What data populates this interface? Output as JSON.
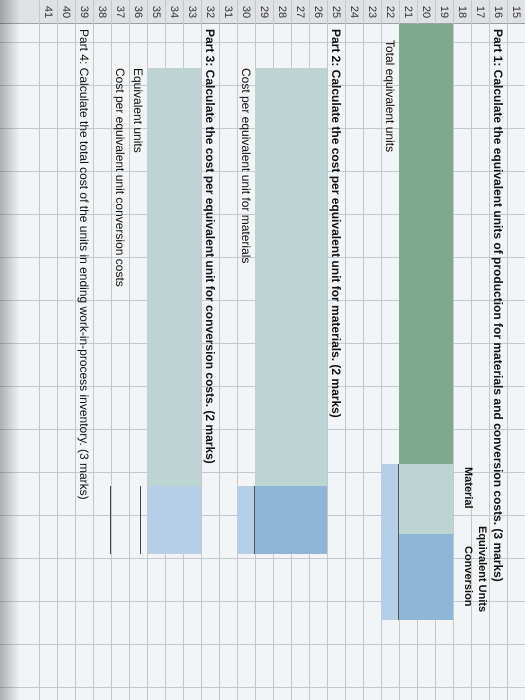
{
  "rows": [
    {
      "num": "15",
      "text": ""
    },
    {
      "num": "16",
      "text": "Part 1: Calculate the equivalent units of production for materials and conversion costs. (3 marks)"
    },
    {
      "num": "17",
      "text": ""
    },
    {
      "num": "18",
      "text": ""
    },
    {
      "num": "19",
      "text": ""
    },
    {
      "num": "20",
      "text": ""
    },
    {
      "num": "21",
      "text": ""
    },
    {
      "num": "22",
      "text": "Total equivalent units"
    },
    {
      "num": "23",
      "text": ""
    },
    {
      "num": "24",
      "text": ""
    },
    {
      "num": "25",
      "text": "Part 2: Calculate the cost per equivalent unit for materials. (2 marks)"
    },
    {
      "num": "26",
      "text": ""
    },
    {
      "num": "27",
      "text": ""
    },
    {
      "num": "28",
      "text": ""
    },
    {
      "num": "29",
      "text": ""
    },
    {
      "num": "30",
      "text": "Cost per equivalent unit for materials"
    },
    {
      "num": "31",
      "text": ""
    },
    {
      "num": "32",
      "text": "Part 3: Calculate the cost per equivalent unit for conversion costs. (2 marks)"
    },
    {
      "num": "33",
      "text": ""
    },
    {
      "num": "34",
      "text": ""
    },
    {
      "num": "35",
      "text": ""
    },
    {
      "num": "36",
      "text": "Equivalent units"
    },
    {
      "num": "37",
      "text": "Cost per equivalent unit conversion costs"
    },
    {
      "num": "38",
      "text": ""
    },
    {
      "num": "39",
      "text": "Part 4: Calculate the total cost of the units in ending work-in-process inventory. (3 marks)"
    },
    {
      "num": "40",
      "text": ""
    },
    {
      "num": "41",
      "text": ""
    }
  ],
  "equivalent_units_header": {
    "title": "Equivalent Units",
    "material": "Material",
    "conversion": "Conversion"
  },
  "colors": {
    "green": "#7fa88e",
    "teal": "#bcd4d2",
    "blue": "#8fb6d6",
    "blue_light": "#b4cfe6"
  }
}
